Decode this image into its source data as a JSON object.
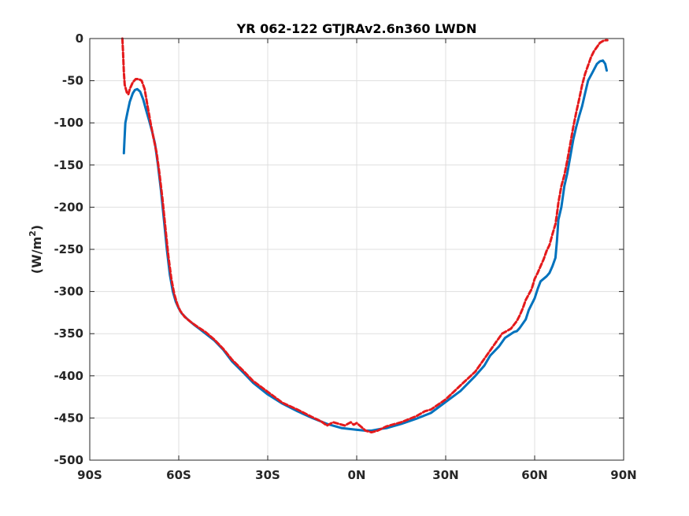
{
  "chart_data": {
    "type": "line",
    "title": "YR 062-122 GTJRAv2.6n360 LWDN",
    "xlabel": "",
    "ylabel": "(W/m",
    "ylabel_sup": "2",
    "ylabel_close": ")",
    "xlim": [
      -90,
      90
    ],
    "ylim": [
      -500,
      0
    ],
    "grid": true,
    "x_ticks": [
      {
        "value": -90,
        "label": "90S"
      },
      {
        "value": -60,
        "label": "60S"
      },
      {
        "value": -30,
        "label": "30S"
      },
      {
        "value": 0,
        "label": "0N"
      },
      {
        "value": 30,
        "label": "30N"
      },
      {
        "value": 60,
        "label": "60N"
      },
      {
        "value": 90,
        "label": "90N"
      }
    ],
    "y_ticks": [
      {
        "value": 0,
        "label": "0"
      },
      {
        "value": -50,
        "label": "-50"
      },
      {
        "value": -100,
        "label": "-100"
      },
      {
        "value": -150,
        "label": "-150"
      },
      {
        "value": -200,
        "label": "-200"
      },
      {
        "value": -250,
        "label": "-250"
      },
      {
        "value": -300,
        "label": "-300"
      },
      {
        "value": -350,
        "label": "-350"
      },
      {
        "value": -400,
        "label": "-400"
      },
      {
        "value": -450,
        "label": "-450"
      },
      {
        "value": -500,
        "label": "-500"
      }
    ],
    "series": [
      {
        "color": "#0072bd",
        "style": "solid",
        "points": [
          [
            -78.5,
            -136
          ],
          [
            -78.3,
            -120
          ],
          [
            -78.0,
            -100
          ],
          [
            -77.3,
            -88
          ],
          [
            -76.5,
            -75
          ],
          [
            -75.5,
            -65
          ],
          [
            -74.8,
            -61
          ],
          [
            -74.0,
            -60
          ],
          [
            -73.0,
            -63
          ],
          [
            -72.0,
            -72
          ],
          [
            -71.0,
            -85
          ],
          [
            -70.0,
            -97
          ],
          [
            -69.0,
            -110
          ],
          [
            -68.0,
            -125
          ],
          [
            -67.0,
            -150
          ],
          [
            -66.0,
            -180
          ],
          [
            -65.0,
            -215
          ],
          [
            -64.0,
            -250
          ],
          [
            -63.0,
            -280
          ],
          [
            -62.0,
            -300
          ],
          [
            -61.0,
            -312
          ],
          [
            -60.0,
            -320
          ],
          [
            -59.0,
            -326
          ],
          [
            -57.0,
            -333
          ],
          [
            -55.0,
            -339
          ],
          [
            -52.0,
            -347
          ],
          [
            -48.0,
            -358
          ],
          [
            -45.0,
            -369
          ],
          [
            -42.0,
            -383
          ],
          [
            -38.0,
            -397
          ],
          [
            -35.0,
            -408
          ],
          [
            -30.0,
            -422
          ],
          [
            -25.0,
            -433
          ],
          [
            -20.0,
            -442
          ],
          [
            -15.0,
            -450
          ],
          [
            -10.0,
            -457
          ],
          [
            -5.0,
            -462
          ],
          [
            0.0,
            -464
          ],
          [
            3.0,
            -465
          ],
          [
            5.0,
            -465
          ],
          [
            8.0,
            -463
          ],
          [
            10.0,
            -462
          ],
          [
            15.0,
            -457
          ],
          [
            20.0,
            -451
          ],
          [
            25.0,
            -444
          ],
          [
            30.0,
            -431
          ],
          [
            35.0,
            -418
          ],
          [
            40.0,
            -400
          ],
          [
            43.0,
            -388
          ],
          [
            45.0,
            -376
          ],
          [
            48.0,
            -365
          ],
          [
            50.0,
            -355
          ],
          [
            53.0,
            -348
          ],
          [
            54.0,
            -347
          ],
          [
            55.0,
            -343
          ],
          [
            57.0,
            -333
          ],
          [
            58.0,
            -322
          ],
          [
            60.0,
            -308
          ],
          [
            61.0,
            -297
          ],
          [
            62.0,
            -288
          ],
          [
            64.0,
            -282
          ],
          [
            65.0,
            -278
          ],
          [
            66.0,
            -270
          ],
          [
            67.0,
            -260
          ],
          [
            67.5,
            -240
          ],
          [
            68.0,
            -215
          ],
          [
            69.0,
            -200
          ],
          [
            70.0,
            -175
          ],
          [
            71.0,
            -160
          ],
          [
            72.0,
            -140
          ],
          [
            73.0,
            -120
          ],
          [
            74.0,
            -105
          ],
          [
            75.0,
            -92
          ],
          [
            76.0,
            -80
          ],
          [
            77.0,
            -65
          ],
          [
            78.0,
            -50
          ],
          [
            79.5,
            -40
          ],
          [
            81.0,
            -30
          ],
          [
            82.0,
            -27
          ],
          [
            83.0,
            -26
          ],
          [
            83.8,
            -30
          ],
          [
            84.3,
            -38
          ]
        ]
      },
      {
        "color": "#e41a1c",
        "style": "dashed",
        "points": [
          [
            -79.0,
            0
          ],
          [
            -78.8,
            -15
          ],
          [
            -78.5,
            -40
          ],
          [
            -78.2,
            -55
          ],
          [
            -77.5,
            -64
          ],
          [
            -77.0,
            -66
          ],
          [
            -76.5,
            -60
          ],
          [
            -75.5,
            -52
          ],
          [
            -74.5,
            -48
          ],
          [
            -73.5,
            -48
          ],
          [
            -72.5,
            -50
          ],
          [
            -71.5,
            -60
          ],
          [
            -70.5,
            -80
          ],
          [
            -69.5,
            -100
          ],
          [
            -68.5,
            -118
          ],
          [
            -67.5,
            -135
          ],
          [
            -66.5,
            -160
          ],
          [
            -65.5,
            -190
          ],
          [
            -64.5,
            -225
          ],
          [
            -63.5,
            -258
          ],
          [
            -62.5,
            -285
          ],
          [
            -61.5,
            -303
          ],
          [
            -60.5,
            -315
          ],
          [
            -59.5,
            -323
          ],
          [
            -58.0,
            -330
          ],
          [
            -56.0,
            -336
          ],
          [
            -54.0,
            -341
          ],
          [
            -51.0,
            -348
          ],
          [
            -48.0,
            -357
          ],
          [
            -45.0,
            -368
          ],
          [
            -42.0,
            -381
          ],
          [
            -38.0,
            -395
          ],
          [
            -35.0,
            -406
          ],
          [
            -30.0,
            -419
          ],
          [
            -25.0,
            -432
          ],
          [
            -20.0,
            -440
          ],
          [
            -15.0,
            -449
          ],
          [
            -12.0,
            -454
          ],
          [
            -10.0,
            -459
          ],
          [
            -8.0,
            -455
          ],
          [
            -6.0,
            -457
          ],
          [
            -4.0,
            -459
          ],
          [
            -2.0,
            -455
          ],
          [
            -1.0,
            -458
          ],
          [
            0.0,
            -456
          ],
          [
            1.0,
            -459
          ],
          [
            3.0,
            -465
          ],
          [
            5.0,
            -467
          ],
          [
            7.0,
            -465
          ],
          [
            10.0,
            -460
          ],
          [
            13.0,
            -457
          ],
          [
            15.0,
            -455
          ],
          [
            20.0,
            -448
          ],
          [
            23.0,
            -442
          ],
          [
            25.0,
            -440
          ],
          [
            30.0,
            -428
          ],
          [
            33.0,
            -418
          ],
          [
            36.0,
            -408
          ],
          [
            40.0,
            -395
          ],
          [
            42.0,
            -385
          ],
          [
            45.0,
            -370
          ],
          [
            47.0,
            -360
          ],
          [
            49.0,
            -350
          ],
          [
            52.0,
            -344
          ],
          [
            54.0,
            -335
          ],
          [
            55.0,
            -328
          ],
          [
            56.0,
            -320
          ],
          [
            57.0,
            -310
          ],
          [
            59.0,
            -297
          ],
          [
            60.0,
            -285
          ],
          [
            61.0,
            -278
          ],
          [
            62.0,
            -270
          ],
          [
            63.0,
            -262
          ],
          [
            64.0,
            -252
          ],
          [
            65.0,
            -245
          ],
          [
            66.0,
            -232
          ],
          [
            67.0,
            -220
          ],
          [
            67.5,
            -208
          ],
          [
            68.0,
            -195
          ],
          [
            69.0,
            -175
          ],
          [
            70.0,
            -162
          ],
          [
            71.0,
            -145
          ],
          [
            72.0,
            -125
          ],
          [
            73.0,
            -105
          ],
          [
            74.0,
            -88
          ],
          [
            75.0,
            -72
          ],
          [
            76.0,
            -55
          ],
          [
            77.0,
            -42
          ],
          [
            78.0,
            -32
          ],
          [
            79.0,
            -22
          ],
          [
            80.0,
            -15
          ],
          [
            81.0,
            -10
          ],
          [
            82.0,
            -5
          ],
          [
            83.0,
            -3
          ],
          [
            84.0,
            -2
          ],
          [
            84.5,
            -2
          ]
        ]
      }
    ]
  }
}
